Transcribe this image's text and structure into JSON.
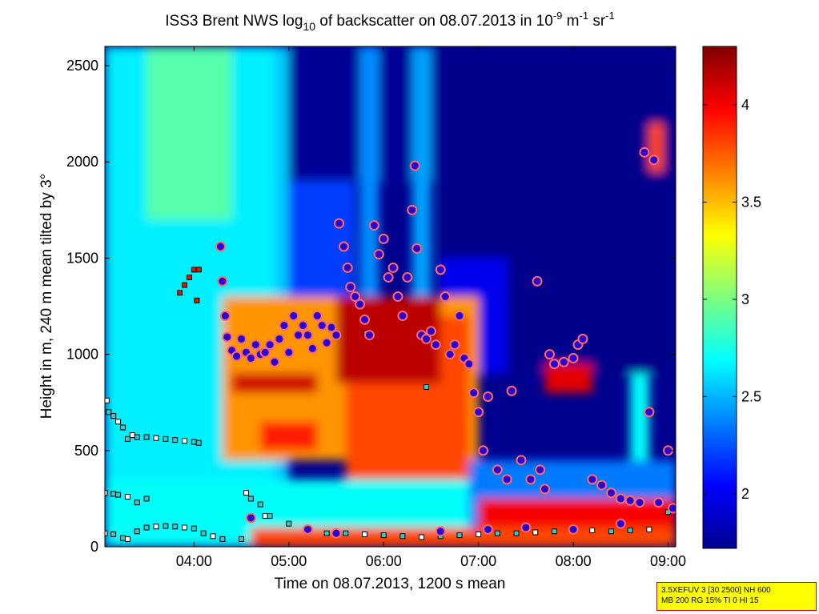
{
  "title": {
    "prefix": "ISS3 Brent NWS log",
    "sub": "10",
    "mid": " of backscatter on 08.07.2013 in 10",
    "sup1": "-9",
    "mid2": " m",
    "sup2": "-1",
    "mid3": " sr",
    "sup3": "-1"
  },
  "axes": {
    "xlabel": "Time on 08.07.2013, 1200 s mean",
    "ylabel": "Height in m, 240 m mean tilted by 3°",
    "x_ticks": [
      {
        "label": "04:00",
        "hour": 4.0
      },
      {
        "label": "05:00",
        "hour": 5.0
      },
      {
        "label": "06:00",
        "hour": 6.0
      },
      {
        "label": "07:00",
        "hour": 7.0
      },
      {
        "label": "08:00",
        "hour": 8.0
      },
      {
        "label": "09:00",
        "hour": 9.0
      }
    ],
    "y_ticks": [
      0,
      500,
      1000,
      1500,
      2000,
      2500
    ],
    "x_range_hours": [
      3.06,
      9.08
    ],
    "y_range_m": [
      0,
      2600
    ]
  },
  "colorbar": {
    "ticks": [
      "2",
      "2.5",
      "3",
      "3.5",
      "4"
    ],
    "tick_values": [
      2,
      2.5,
      3,
      3.5,
      4
    ],
    "range": [
      1.72,
      4.3
    ],
    "colormap": "jet"
  },
  "info_box": {
    "line1": "3.5XEFUV 3 [30 2500] NH 600",
    "line2": "MB 200 RG 15% TI 0 HI 15",
    "bg_color": "#ffff00",
    "border_color": "#cc0000"
  },
  "chart_data": {
    "type": "heatmap",
    "title": "ISS3 Brent NWS log10 of backscatter on 08.07.2013 in 10^-9 m^-1 sr^-1",
    "xlabel": "Time on 08.07.2013, 1200 s mean",
    "ylabel": "Height in m, 240 m mean tilted by 3°",
    "x_unit": "hour UTC",
    "y_unit": "m",
    "xlim": [
      3.06,
      9.08
    ],
    "ylim": [
      0,
      2600
    ],
    "clim": [
      1.72,
      4.3
    ],
    "grid": false,
    "regions": [
      {
        "t0": 3.06,
        "t1": 4.85,
        "h0": 0,
        "h1": 2600,
        "value": 2.65
      },
      {
        "t0": 3.5,
        "t1": 4.4,
        "h0": 1700,
        "h1": 2600,
        "value": 2.9
      },
      {
        "t0": 4.85,
        "t1": 5.0,
        "h0": 0,
        "h1": 2600,
        "value": 2.55
      },
      {
        "t0": 5.0,
        "t1": 6.6,
        "h0": 1900,
        "h1": 2600,
        "value": 1.78
      },
      {
        "t0": 5.75,
        "t1": 5.95,
        "h0": 1300,
        "h1": 2600,
        "value": 2.4
      },
      {
        "t0": 6.3,
        "t1": 6.5,
        "h0": 1300,
        "h1": 2600,
        "value": 2.45
      },
      {
        "t0": 5.0,
        "t1": 5.7,
        "h0": 1100,
        "h1": 1900,
        "value": 2.2
      },
      {
        "t0": 6.6,
        "t1": 9.08,
        "h0": 900,
        "h1": 2600,
        "value": 1.75
      },
      {
        "t0": 6.6,
        "t1": 7.3,
        "h0": 900,
        "h1": 1500,
        "value": 2.0
      },
      {
        "t0": 4.3,
        "t1": 7.0,
        "h0": 450,
        "h1": 1300,
        "value": 3.6
      },
      {
        "t0": 5.6,
        "t1": 6.9,
        "h0": 350,
        "h1": 1200,
        "value": 3.8
      },
      {
        "t0": 4.4,
        "t1": 5.3,
        "h0": 800,
        "h1": 900,
        "value": 4.1
      },
      {
        "t0": 4.7,
        "t1": 5.3,
        "h0": 500,
        "h1": 650,
        "value": 3.9
      },
      {
        "t0": 5.5,
        "t1": 6.6,
        "h0": 850,
        "h1": 1300,
        "value": 4.15
      },
      {
        "t0": 3.06,
        "t1": 9.08,
        "h0": 0,
        "h1": 350,
        "value": 2.7
      },
      {
        "t0": 6.9,
        "t1": 9.08,
        "h0": 100,
        "h1": 450,
        "value": 2.35
      },
      {
        "t0": 4.6,
        "t1": 9.08,
        "h0": 0,
        "h1": 100,
        "value": 3.8
      },
      {
        "t0": 7.0,
        "t1": 9.08,
        "h0": 100,
        "h1": 250,
        "value": 4.0
      },
      {
        "t0": 7.7,
        "t1": 8.2,
        "h0": 800,
        "h1": 950,
        "value": 4.05
      },
      {
        "t0": 8.6,
        "t1": 8.8,
        "h0": 450,
        "h1": 900,
        "value": 2.7
      },
      {
        "t0": 8.8,
        "t1": 8.95,
        "h0": 1950,
        "h1": 2200,
        "value": 3.8
      }
    ],
    "cloud_base_points": [
      [
        4.28,
        1560
      ],
      [
        4.3,
        1380
      ],
      [
        4.33,
        1200
      ],
      [
        4.35,
        1090
      ],
      [
        4.4,
        1020
      ],
      [
        4.45,
        990
      ],
      [
        4.5,
        1080
      ],
      [
        4.55,
        1010
      ],
      [
        4.6,
        980
      ],
      [
        4.65,
        1050
      ],
      [
        4.7,
        1000
      ],
      [
        4.75,
        1010
      ],
      [
        4.8,
        1050
      ],
      [
        4.85,
        960
      ],
      [
        4.9,
        1080
      ],
      [
        4.95,
        1150
      ],
      [
        5.0,
        1010
      ],
      [
        5.05,
        1200
      ],
      [
        5.1,
        1100
      ],
      [
        5.15,
        1150
      ],
      [
        5.2,
        1100
      ],
      [
        5.25,
        1030
      ],
      [
        5.3,
        1200
      ],
      [
        5.35,
        1150
      ],
      [
        5.4,
        1060
      ],
      [
        5.45,
        1140
      ],
      [
        5.5,
        1100
      ],
      [
        5.53,
        1680
      ],
      [
        5.58,
        1560
      ],
      [
        5.62,
        1450
      ],
      [
        5.65,
        1350
      ],
      [
        5.7,
        1300
      ],
      [
        5.75,
        1260
      ],
      [
        5.8,
        1180
      ],
      [
        5.85,
        1100
      ],
      [
        5.9,
        1670
      ],
      [
        5.95,
        1520
      ],
      [
        6.0,
        1600
      ],
      [
        6.05,
        1400
      ],
      [
        6.1,
        1450
      ],
      [
        6.15,
        1300
      ],
      [
        6.2,
        1200
      ],
      [
        6.25,
        1400
      ],
      [
        6.3,
        1750
      ],
      [
        6.33,
        1980
      ],
      [
        6.35,
        1550
      ],
      [
        6.4,
        1100
      ],
      [
        6.45,
        1080
      ],
      [
        6.5,
        1120
      ],
      [
        6.55,
        1050
      ],
      [
        6.6,
        1440
      ],
      [
        6.65,
        1300
      ],
      [
        6.7,
        1000
      ],
      [
        6.75,
        1050
      ],
      [
        6.8,
        1200
      ],
      [
        6.85,
        980
      ],
      [
        6.9,
        950
      ],
      [
        6.95,
        800
      ],
      [
        7.0,
        700
      ],
      [
        7.05,
        500
      ],
      [
        7.1,
        780
      ],
      [
        7.2,
        400
      ],
      [
        7.3,
        350
      ],
      [
        7.35,
        810
      ],
      [
        7.45,
        450
      ],
      [
        7.55,
        350
      ],
      [
        7.62,
        1380
      ],
      [
        7.65,
        400
      ],
      [
        7.7,
        300
      ],
      [
        7.75,
        1000
      ],
      [
        7.8,
        950
      ],
      [
        7.9,
        960
      ],
      [
        8.0,
        980
      ],
      [
        8.05,
        1050
      ],
      [
        8.1,
        1080
      ],
      [
        8.2,
        350
      ],
      [
        8.3,
        320
      ],
      [
        8.4,
        280
      ],
      [
        8.5,
        250
      ],
      [
        8.6,
        240
      ],
      [
        8.7,
        230
      ],
      [
        8.75,
        2050
      ],
      [
        8.8,
        700
      ],
      [
        8.85,
        2010
      ],
      [
        8.9,
        230
      ],
      [
        9.0,
        500
      ],
      [
        9.05,
        200
      ],
      [
        4.6,
        150
      ],
      [
        5.2,
        90
      ],
      [
        5.5,
        70
      ],
      [
        6.6,
        80
      ],
      [
        7.1,
        90
      ],
      [
        7.5,
        100
      ],
      [
        8.0,
        90
      ],
      [
        8.5,
        120
      ]
    ],
    "layer_markers": [
      [
        3.08,
        760
      ],
      [
        3.1,
        700
      ],
      [
        3.15,
        680
      ],
      [
        3.2,
        650
      ],
      [
        3.25,
        620
      ],
      [
        3.3,
        560
      ],
      [
        3.35,
        580
      ],
      [
        3.4,
        570
      ],
      [
        3.5,
        570
      ],
      [
        3.6,
        565
      ],
      [
        3.7,
        560
      ],
      [
        3.8,
        555
      ],
      [
        3.9,
        550
      ],
      [
        4.0,
        545
      ],
      [
        4.05,
        540
      ],
      [
        3.06,
        280
      ],
      [
        3.15,
        275
      ],
      [
        3.2,
        270
      ],
      [
        3.3,
        260
      ],
      [
        3.4,
        230
      ],
      [
        3.5,
        250
      ],
      [
        3.06,
        70
      ],
      [
        3.15,
        65
      ],
      [
        3.25,
        45
      ],
      [
        3.3,
        40
      ],
      [
        3.4,
        80
      ],
      [
        3.5,
        100
      ],
      [
        3.6,
        105
      ],
      [
        3.7,
        108
      ],
      [
        3.8,
        105
      ],
      [
        3.9,
        100
      ],
      [
        4.0,
        95
      ],
      [
        4.1,
        70
      ],
      [
        4.2,
        55
      ],
      [
        4.3,
        40
      ],
      [
        4.5,
        40
      ],
      [
        4.55,
        280
      ],
      [
        4.6,
        250
      ],
      [
        4.7,
        220
      ],
      [
        4.75,
        160
      ],
      [
        4.8,
        160
      ],
      [
        5.0,
        120
      ],
      [
        5.2,
        80
      ],
      [
        5.4,
        70
      ],
      [
        5.6,
        70
      ],
      [
        5.8,
        65
      ],
      [
        6.0,
        60
      ],
      [
        6.2,
        55
      ],
      [
        6.4,
        50
      ],
      [
        6.6,
        55
      ],
      [
        6.8,
        60
      ],
      [
        7.0,
        65
      ],
      [
        7.2,
        70
      ],
      [
        7.4,
        70
      ],
      [
        7.6,
        75
      ],
      [
        7.8,
        80
      ],
      [
        8.0,
        85
      ],
      [
        8.2,
        85
      ],
      [
        8.4,
        80
      ],
      [
        8.6,
        85
      ],
      [
        8.8,
        90
      ],
      [
        9.0,
        180
      ],
      [
        3.85,
        1320
      ],
      [
        3.9,
        1360
      ],
      [
        3.95,
        1400
      ],
      [
        4.0,
        1440
      ],
      [
        4.05,
        1440
      ],
      [
        4.03,
        1280
      ],
      [
        6.45,
        830
      ],
      [
        5.82,
        1110
      ]
    ]
  }
}
